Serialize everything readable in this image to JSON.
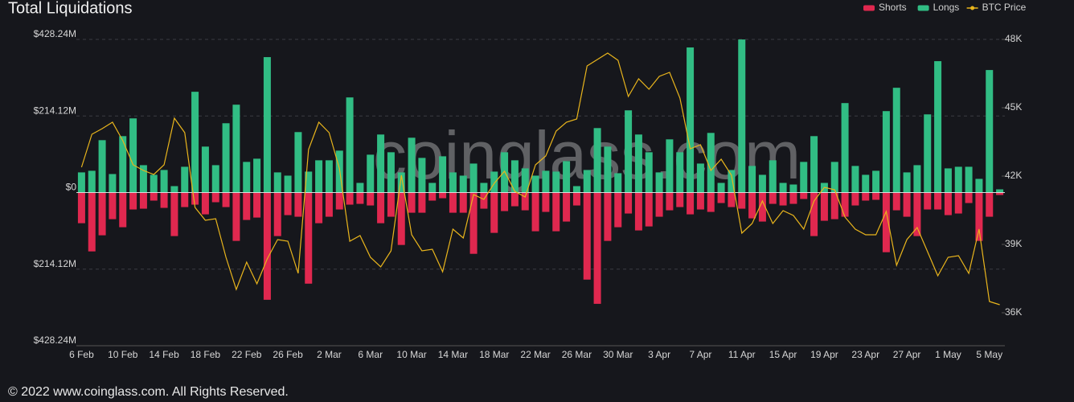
{
  "chart_data": {
    "type": "bar",
    "title": "Total Liquidations",
    "watermark": "coinglass.com",
    "footer": "© 2022 www.coinglass.com. All Rights Reserved.",
    "legend": "top-right",
    "grid": true,
    "categories": [
      "6 Feb",
      null,
      null,
      null,
      "10 Feb",
      null,
      null,
      null,
      "14 Feb",
      null,
      null,
      null,
      "18 Feb",
      null,
      null,
      null,
      "22 Feb",
      null,
      null,
      null,
      "26 Feb",
      null,
      null,
      null,
      "2 Mar",
      null,
      null,
      null,
      "6 Mar",
      null,
      null,
      null,
      "10 Mar",
      null,
      null,
      null,
      "14 Mar",
      null,
      null,
      null,
      "18 Mar",
      null,
      null,
      null,
      "22 Mar",
      null,
      null,
      null,
      "26 Mar",
      null,
      null,
      null,
      "30 Mar",
      null,
      null,
      null,
      "3 Apr",
      null,
      null,
      null,
      "7 Apr",
      null,
      null,
      null,
      "11 Apr",
      null,
      null,
      null,
      "15 Apr",
      null,
      null,
      null,
      "19 Apr",
      null,
      null,
      null,
      "23 Apr",
      null,
      null,
      null,
      "27 Apr",
      null,
      null,
      null,
      "1 May",
      null,
      null,
      null,
      "5 May",
      null
    ],
    "ylim": [
      -428.24,
      428.24
    ],
    "yticks": [
      {
        "value": 428.24,
        "label": "$428.24M"
      },
      {
        "value": 214.12,
        "label": "$214.12M"
      },
      {
        "value": 0,
        "label": "$0"
      },
      {
        "value": -214.12,
        "label": "$214.12M"
      },
      {
        "value": -428.24,
        "label": "$428.24M"
      }
    ],
    "y2lim": [
      34553,
      48000
    ],
    "y2ticks": [
      {
        "value": 48000,
        "label": "48K"
      },
      {
        "value": 45000,
        "label": "45K"
      },
      {
        "value": 42000,
        "label": "42K"
      },
      {
        "value": 39000,
        "label": "39K"
      },
      {
        "value": 36000,
        "label": "36K"
      }
    ],
    "series": [
      {
        "name": "Shorts",
        "type": "bar",
        "color": "#e0284f",
        "values": [
          -85.7,
          -164.5,
          -119.5,
          -74.4,
          -96.9,
          -47.3,
          -45.1,
          -22.5,
          -42.8,
          -121.7,
          -40.6,
          -33.8,
          -60.9,
          -27.0,
          -40.6,
          -135.2,
          -76.6,
          -69.9,
          -299.8,
          -121.7,
          -63.1,
          -67.6,
          -254.7,
          -85.7,
          -67.6,
          -47.3,
          -33.8,
          -31.6,
          -36.1,
          -85.7,
          -67.6,
          -146.5,
          -56.4,
          -56.4,
          -22.5,
          -15.8,
          -56.4,
          -56.4,
          -171.3,
          -45.1,
          -112.7,
          -51.8,
          -38.3,
          -49.6,
          -108.2,
          -54.1,
          -108.2,
          -81.1,
          -36.1,
          -243.4,
          -311.1,
          -135.2,
          -96.9,
          -58.6,
          -105.9,
          -94.7,
          -67.6,
          -49.6,
          -40.6,
          -60.9,
          -47.3,
          -54.1,
          -29.3,
          -40.6,
          -45.1,
          -72.1,
          -81.1,
          -31.6,
          -36.1,
          -31.6,
          -18.0,
          -121.7,
          -78.9,
          -74.4,
          -67.6,
          -36.1,
          -22.5,
          -20.3,
          -166.8,
          -49.6,
          -67.6,
          -121.7,
          -47.3,
          -47.3,
          -63.1,
          -58.6,
          -29.3,
          -135.2,
          -67.6,
          -6.8
        ]
      },
      {
        "name": "Longs",
        "type": "bar",
        "color": "#31bd84",
        "values": [
          56.4,
          60.9,
          146.5,
          51.8,
          157.8,
          207.4,
          76.6,
          49.6,
          63.1,
          18.0,
          72.1,
          281.8,
          128.5,
          76.6,
          193.8,
          245.7,
          85.7,
          94.7,
          378.7,
          56.4,
          47.3,
          169.1,
          58.6,
          90.2,
          90.2,
          117.2,
          266.0,
          27.0,
          105.9,
          162.3,
          112.7,
          56.4,
          153.3,
          96.9,
          27.0,
          101.4,
          56.4,
          47.3,
          81.1,
          27.0,
          58.6,
          112.7,
          90.2,
          67.6,
          47.3,
          60.9,
          58.6,
          87.9,
          18.0,
          63.1,
          180.3,
          128.5,
          54.1,
          229.9,
          162.3,
          112.7,
          56.4,
          148.8,
          112.7,
          405.7,
          81.1,
          166.8,
          27.0,
          63.1,
          428.0,
          74.4,
          49.6,
          90.2,
          27.0,
          22.5,
          85.7,
          157.8,
          27.0,
          85.7,
          250.2,
          74.4,
          49.6,
          60.9,
          227.7,
          293.0,
          56.4,
          76.6,
          218.6,
          367.4,
          67.6,
          72.1,
          72.1,
          38.3,
          342.6,
          9.0
        ]
      },
      {
        "name": "BTC Price",
        "type": "line",
        "axis": "y2",
        "color": "#e9b51c",
        "values": [
          42388,
          43835,
          44082,
          44365,
          43553,
          42494,
          42247,
          42071,
          42494,
          44541,
          43906,
          40624,
          40059,
          40129,
          38435,
          37024,
          38224,
          37271,
          38365,
          39212,
          39141,
          37729,
          43165,
          44365,
          43906,
          42318,
          39141,
          39388,
          38435,
          38012,
          38718,
          42035,
          39424,
          38718,
          38788,
          37800,
          39671,
          39282,
          41188,
          40976,
          41682,
          42212,
          41329,
          41082,
          42494,
          42882,
          43976,
          44365,
          44506,
          46835,
          47118,
          47400,
          47082,
          45494,
          46271,
          45812,
          46376,
          46553,
          45424,
          43200,
          43376,
          42247,
          42741,
          42035,
          39494,
          39918,
          40906,
          39918,
          40482,
          40271,
          39671,
          40906,
          41506,
          41400,
          40200,
          39671,
          39424,
          39424,
          40447,
          38082,
          39212,
          39741,
          38682,
          37624,
          38435,
          38506,
          37729,
          39671,
          36494,
          36353
        ]
      }
    ]
  }
}
